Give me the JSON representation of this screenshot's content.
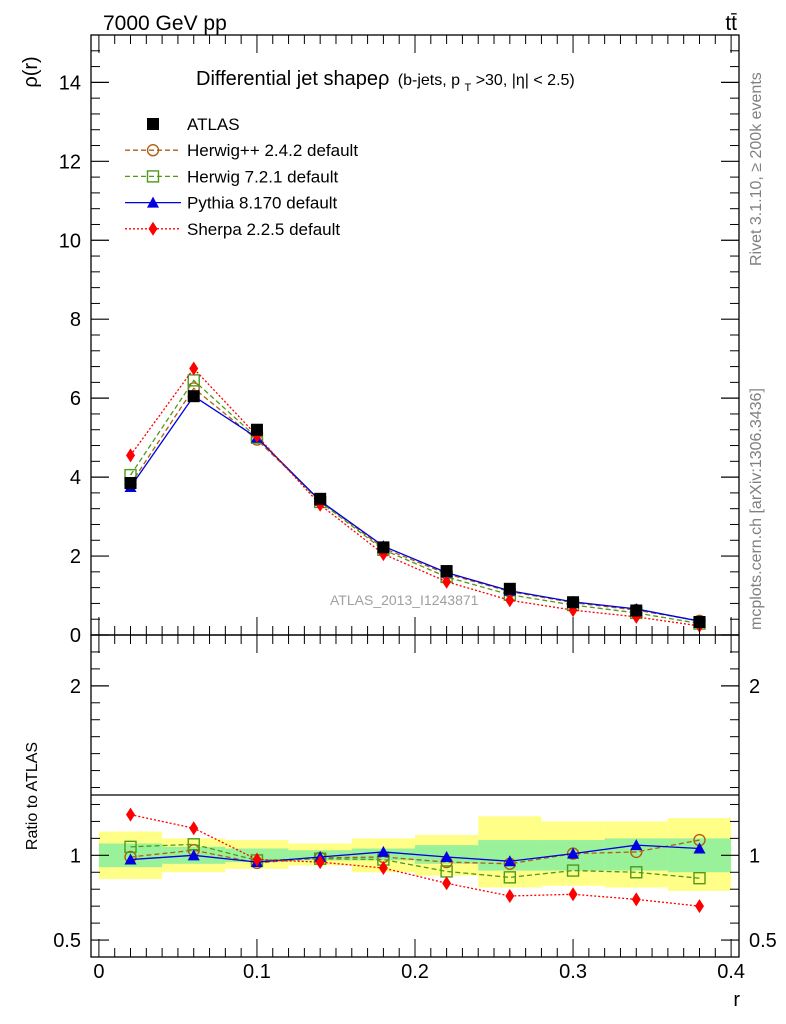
{
  "header": {
    "energy_label": "7000 GeV pp",
    "process_label": "tt̄",
    "side_label_events": "Rivet 3.1.10, ≥ 200k events",
    "side_label_site": "mcplots.cern.ch [arXiv:1306.3436]",
    "watermark": "ATLAS_2013_I1243871"
  },
  "chart_data": [
    {
      "type": "line",
      "panel": "main",
      "title": "Differential jet shapeρ",
      "title_detail": "(b-jets, p",
      "title_detail_sub": "T",
      "title_detail_tail": ">30, |η| < 2.5)",
      "xlabel": "r",
      "ylabel": "ρ(r)",
      "xlim": [
        -0.005,
        0.405
      ],
      "ylim": [
        0,
        15.2
      ],
      "y_ticks": [
        0,
        2,
        4,
        6,
        8,
        10,
        12,
        14
      ],
      "x": [
        0.02,
        0.06,
        0.1,
        0.14,
        0.18,
        0.22,
        0.26,
        0.3,
        0.34,
        0.38
      ],
      "series": [
        {
          "name": "ATLAS",
          "color": "#000000",
          "marker": "filled-square",
          "line": "none",
          "values": [
            3.85,
            6.05,
            5.2,
            3.45,
            2.22,
            1.62,
            1.17,
            0.83,
            0.62,
            0.33
          ]
        },
        {
          "name": "Herwig++ 2.4.2 default",
          "color": "#b05f10",
          "marker": "open-circle",
          "line": "dashed",
          "values": [
            3.82,
            6.25,
            4.95,
            3.4,
            2.2,
            1.55,
            1.1,
            0.82,
            0.63,
            0.36
          ]
        },
        {
          "name": "Herwig 7.2.1 default",
          "color": "#4f9a1a",
          "marker": "open-square",
          "line": "dashed",
          "values": [
            4.05,
            6.45,
            5.0,
            3.37,
            2.16,
            1.47,
            1.02,
            0.76,
            0.56,
            0.29
          ]
        },
        {
          "name": "Pythia 8.170 default",
          "color": "#0000e0",
          "marker": "filled-triangle",
          "line": "solid",
          "values": [
            3.75,
            6.05,
            5.0,
            3.4,
            2.25,
            1.58,
            1.12,
            0.84,
            0.66,
            0.35
          ]
        },
        {
          "name": "Sherpa 2.2.5 default",
          "color": "#ff0000",
          "marker": "filled-diamond",
          "line": "dotted",
          "values": [
            4.55,
            6.75,
            5.05,
            3.3,
            2.05,
            1.35,
            0.88,
            0.63,
            0.46,
            0.23
          ]
        }
      ]
    },
    {
      "type": "line",
      "panel": "ratio",
      "xlabel": "r",
      "ylabel": "Ratio to ATLAS",
      "ylim": [
        0.4,
        2.3
      ],
      "y_tick_labels": [
        "0.5",
        "1",
        "2"
      ],
      "y_tick_values": [
        0.5,
        1,
        2
      ],
      "x_tick_labels": [
        "0",
        "0.1",
        "0.2",
        "0.3",
        "0.4"
      ],
      "x_tick_values": [
        0,
        0.1,
        0.2,
        0.3,
        0.4
      ],
      "x": [
        0.02,
        0.06,
        0.1,
        0.14,
        0.18,
        0.22,
        0.26,
        0.3,
        0.34,
        0.38
      ],
      "bin_edges": [
        0.0,
        0.04,
        0.08,
        0.12,
        0.16,
        0.2,
        0.24,
        0.28,
        0.32,
        0.36,
        0.4
      ],
      "band_stat": {
        "color": "#99f199",
        "low": [
          0.93,
          0.95,
          0.96,
          0.97,
          0.97,
          0.95,
          0.91,
          0.91,
          0.91,
          0.9
        ],
        "high": [
          1.07,
          1.05,
          1.04,
          1.03,
          1.04,
          1.06,
          1.09,
          1.09,
          1.1,
          1.1
        ]
      },
      "band_total": {
        "color": "#ffff88",
        "low": [
          0.86,
          0.9,
          0.92,
          0.94,
          0.9,
          0.88,
          0.81,
          0.82,
          0.81,
          0.79
        ],
        "high": [
          1.14,
          1.1,
          1.09,
          1.07,
          1.1,
          1.12,
          1.23,
          1.2,
          1.2,
          1.22
        ]
      },
      "series": [
        {
          "name": "Herwig++ 2.4.2 default",
          "color": "#b05f10",
          "marker": "open-circle",
          "line": "dashed",
          "values": [
            0.99,
            1.03,
            0.955,
            0.985,
            0.99,
            0.96,
            0.95,
            1.01,
            1.02,
            1.09
          ]
        },
        {
          "name": "Herwig 7.2.1 default",
          "color": "#4f9a1a",
          "marker": "open-square",
          "line": "dashed",
          "values": [
            1.05,
            1.065,
            0.97,
            0.98,
            0.975,
            0.905,
            0.87,
            0.91,
            0.9,
            0.865
          ]
        },
        {
          "name": "Pythia 8.170 default",
          "color": "#0000e0",
          "marker": "filled-triangle",
          "line": "solid",
          "values": [
            0.975,
            1.0,
            0.96,
            0.99,
            1.02,
            0.99,
            0.965,
            1.01,
            1.06,
            1.04
          ]
        },
        {
          "name": "Sherpa 2.2.5 default",
          "color": "#ff0000",
          "marker": "filled-diamond",
          "line": "dotted",
          "values": [
            1.24,
            1.16,
            0.975,
            0.96,
            0.925,
            0.835,
            0.76,
            0.77,
            0.74,
            0.7
          ]
        }
      ]
    }
  ]
}
